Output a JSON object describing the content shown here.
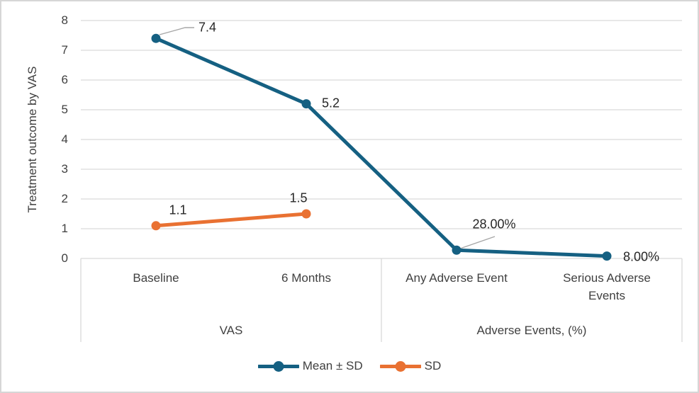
{
  "chart_data": {
    "type": "line",
    "title": "",
    "ylabel": "Treatment outcome by VAS",
    "xlabel": "",
    "ylim": [
      0,
      8
    ],
    "yticks": [
      "0",
      "1",
      "2",
      "3",
      "4",
      "5",
      "6",
      "7",
      "8"
    ],
    "grid": true,
    "legend_position": "bottom",
    "categories": [
      "Baseline",
      "6 Months",
      "Any Adverse Event",
      "Serious Adverse Events"
    ],
    "category_groups": [
      {
        "label": "VAS"
      },
      {
        "label": "Adverse Events, (%)"
      }
    ],
    "series": [
      {
        "name": "Mean ± SD",
        "color": "#156082",
        "points": [
          {
            "x": 0,
            "y": 7.4,
            "label": "7.4"
          },
          {
            "x": 1,
            "y": 5.2,
            "label": "5.2"
          },
          {
            "x": 2,
            "y": 0.28,
            "label": "28.00%"
          },
          {
            "x": 3,
            "y": 0.08,
            "label": "8.00%"
          }
        ]
      },
      {
        "name": "SD",
        "color": "#E97132",
        "points": [
          {
            "x": 0,
            "y": 1.1,
            "label": "1.1"
          },
          {
            "x": 1,
            "y": 1.5,
            "label": "1.5"
          }
        ]
      }
    ],
    "colors": {
      "gridline": "#d9d9d9",
      "leader_line": "#a6a6a6",
      "axis_text": "#404040",
      "data_label_text": "#262626"
    }
  }
}
